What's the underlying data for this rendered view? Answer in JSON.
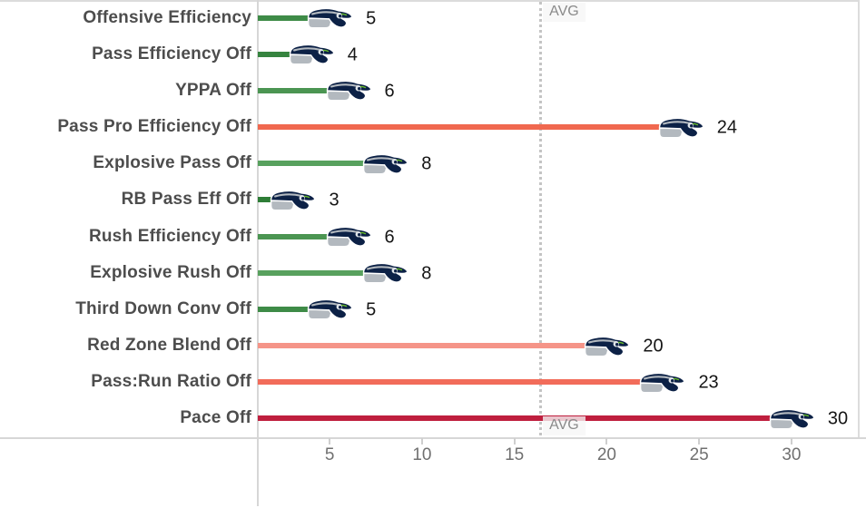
{
  "chart_data": {
    "type": "bar",
    "orientation": "horizontal",
    "title": "",
    "xlabel": "",
    "ylabel": "",
    "categories": [
      "Offensive Efficiency",
      "Pass Efficiency Off",
      "YPPA Off",
      "Pass Pro Efficiency Off",
      "Explosive Pass Off",
      "RB Pass Eff Off",
      "Rush Efficiency Off",
      "Explosive Rush Off",
      "Third Down Conv Off",
      "Red Zone Blend Off",
      "Pass:Run Ratio Off",
      "Pace Off"
    ],
    "values": [
      5,
      4,
      6,
      24,
      8,
      3,
      6,
      8,
      5,
      20,
      23,
      30
    ],
    "bar_colors": [
      "#3e8b47",
      "#36843f",
      "#4b9552",
      "#f0684f",
      "#58a15e",
      "#2e7d37",
      "#4b9552",
      "#58a15e",
      "#3e8b47",
      "#f59488",
      "#f26c5a",
      "#bf1f3e"
    ],
    "x_ticks": [
      5,
      10,
      15,
      20,
      25,
      30
    ],
    "xlim": [
      1,
      34
    ],
    "grid": false,
    "legend": "none",
    "avg_line": {
      "label": "AVG",
      "value": 16.4,
      "style": "dotted-gray"
    },
    "marker_icon": "seahawks-logo",
    "value_labels_shown": true,
    "colors": {
      "label_text": "#4d4d4d",
      "value_text": "#151515",
      "tick_text": "#707070",
      "avg_text": "#8a8a8a",
      "axis_line": "#d6d6d6",
      "border": "#dcdcdc",
      "logo_navy": "#0c2146",
      "logo_silver": "#b3b9bf",
      "logo_green": "#69be28"
    }
  }
}
